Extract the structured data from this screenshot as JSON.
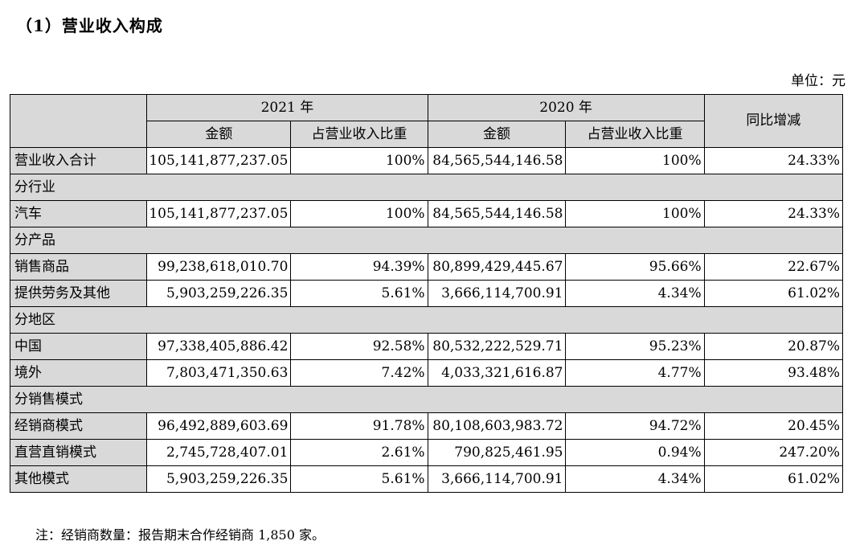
{
  "title": "（1）营业收入构成",
  "unit": "单位：元",
  "header": {
    "year_2021": "2021 年",
    "year_2020": "2020 年",
    "yoy": "同比增减",
    "amount": "金额",
    "ratio": "占营业收入比重"
  },
  "rows": [
    {
      "type": "data",
      "label": "营业收入合计",
      "a2021": "105,141,877,237.05",
      "r2021": "100%",
      "a2020": "84,565,544,146.58",
      "r2020": "100%",
      "yoy": "24.33%"
    },
    {
      "type": "section",
      "label": "分行业"
    },
    {
      "type": "data",
      "label": "汽车",
      "a2021": "105,141,877,237.05",
      "r2021": "100%",
      "a2020": "84,565,544,146.58",
      "r2020": "100%",
      "yoy": "24.33%"
    },
    {
      "type": "section",
      "label": "分产品"
    },
    {
      "type": "data",
      "label": "销售商品",
      "a2021": "99,238,618,010.70",
      "r2021": "94.39%",
      "a2020": "80,899,429,445.67",
      "r2020": "95.66%",
      "yoy": "22.67%"
    },
    {
      "type": "data",
      "label": "提供劳务及其他",
      "a2021": "5,903,259,226.35",
      "r2021": "5.61%",
      "a2020": "3,666,114,700.91",
      "r2020": "4.34%",
      "yoy": "61.02%"
    },
    {
      "type": "section",
      "label": "分地区"
    },
    {
      "type": "data",
      "label": "中国",
      "a2021": "97,338,405,886.42",
      "r2021": "92.58%",
      "a2020": "80,532,222,529.71",
      "r2020": "95.23%",
      "yoy": "20.87%"
    },
    {
      "type": "data",
      "label": "境外",
      "a2021": "7,803,471,350.63",
      "r2021": "7.42%",
      "a2020": "4,033,321,616.87",
      "r2020": "4.77%",
      "yoy": "93.48%"
    },
    {
      "type": "section",
      "label": "分销售模式"
    },
    {
      "type": "data",
      "label": "经销商模式",
      "a2021": "96,492,889,603.69",
      "r2021": "91.78%",
      "a2020": "80,108,603,983.72",
      "r2020": "94.72%",
      "yoy": "20.45%"
    },
    {
      "type": "data",
      "label": "直营直销模式",
      "a2021": "2,745,728,407.01",
      "r2021": "2.61%",
      "a2020": "790,825,461.95",
      "r2020": "0.94%",
      "yoy": "247.20%"
    },
    {
      "type": "data",
      "label": "其他模式",
      "a2021": "5,903,259,226.35",
      "r2021": "5.61%",
      "a2020": "3,666,114,700.91",
      "r2020": "4.34%",
      "yoy": "61.02%"
    }
  ],
  "note": "注：经销商数量：报告期末合作经销商 1,850 家。"
}
